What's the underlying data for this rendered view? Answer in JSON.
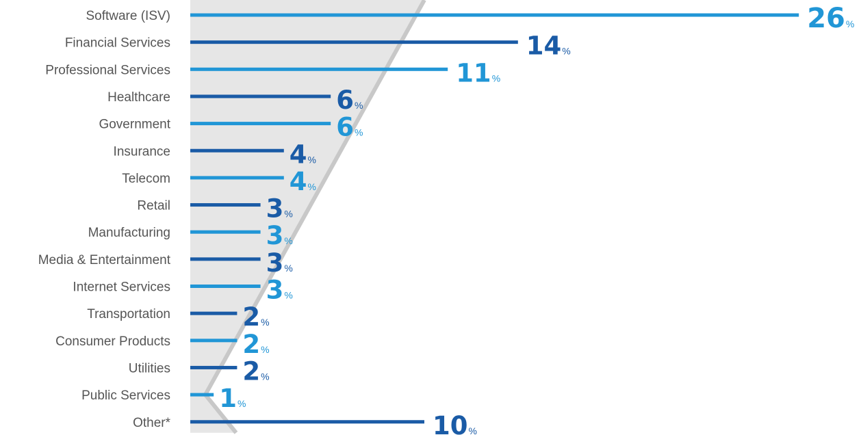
{
  "chart_data": {
    "type": "bar",
    "orientation": "horizontal",
    "categories": [
      "Software (ISV)",
      "Financial Services",
      "Professional Services",
      "Healthcare",
      "Government",
      "Insurance",
      "Telecom",
      "Retail",
      "Manufacturing",
      "Media & Entertainment",
      "Internet Services",
      "Transportation",
      "Consumer Products",
      "Utilities",
      "Public Services",
      "Other*"
    ],
    "values": [
      26,
      14,
      11,
      6,
      6,
      4,
      4,
      3,
      3,
      3,
      3,
      2,
      2,
      2,
      1,
      10
    ],
    "value_suffix": "%",
    "title": "",
    "xlabel": "",
    "ylabel": "",
    "grid": false,
    "legend": "none",
    "colors": {
      "dark": "#1a5ba6",
      "light": "#2196d6",
      "funnel_fill": "#e6e6e6",
      "funnel_edge": "#c8c8c8"
    }
  }
}
